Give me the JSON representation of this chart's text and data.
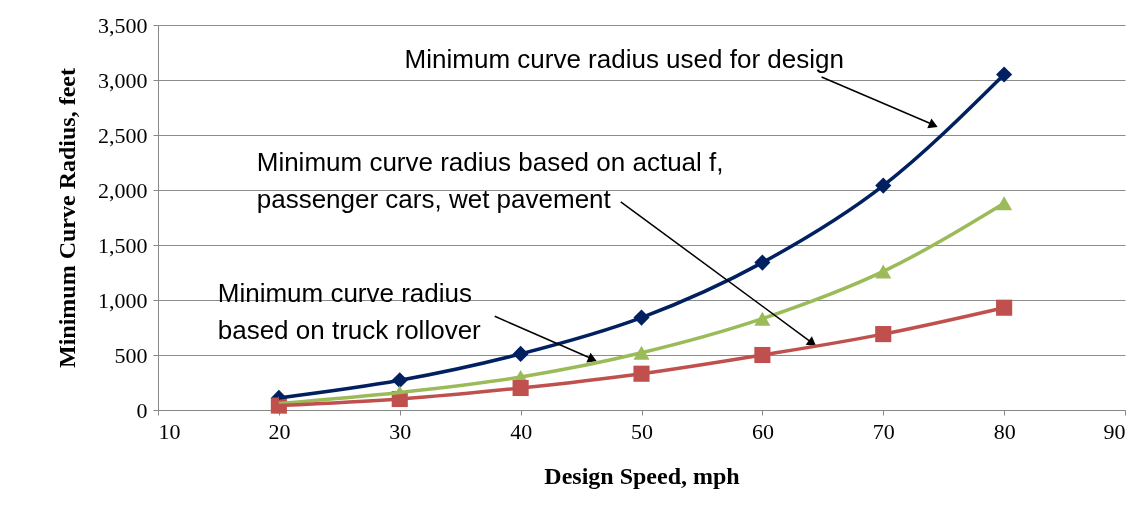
{
  "chart_data": {
    "type": "line",
    "xlabel": "Design Speed, mph",
    "ylabel": "Minimum Curve Radius, feet",
    "x": [
      20,
      30,
      40,
      50,
      60,
      70,
      80
    ],
    "series": [
      {
        "color": "#002060",
        "marker": "diamond",
        "values": [
          110,
          270,
          510,
          840,
          1340,
          2040,
          3050
        ]
      },
      {
        "color": "#9bbb59",
        "marker": "triangle",
        "values": [
          60,
          160,
          300,
          520,
          830,
          1260,
          1880
        ]
      },
      {
        "color": "#c0504d",
        "marker": "square",
        "values": [
          40,
          100,
          200,
          330,
          500,
          690,
          930
        ]
      }
    ],
    "xlim": [
      10,
      90
    ],
    "xticks": [
      10,
      20,
      30,
      40,
      50,
      60,
      70,
      80,
      90
    ],
    "ylim": [
      0,
      3500
    ],
    "yticks": [
      0,
      {
        "value": 500,
        "label": "500"
      },
      {
        "value": 1000,
        "label": "1,000"
      },
      {
        "value": 1500,
        "label": "1,500"
      },
      {
        "value": 2000,
        "label": "2,000"
      },
      {
        "value": 2500,
        "label": "2,500"
      },
      {
        "value": 3000,
        "label": "3,000"
      },
      {
        "value": 3500,
        "label": "3,500"
      }
    ],
    "grid": "y",
    "annotations": [
      {
        "text": "Minimum curve radius used for design",
        "x": 74,
        "y": 2600
      },
      {
        "text": "Minimum curve radius based on actual f,\npassenger cars, wet pavement",
        "x": 64,
        "y": 620
      },
      {
        "text": "Minimum curve radius\nbased on truck rollover",
        "x": 45.8,
        "y": 470
      }
    ]
  }
}
